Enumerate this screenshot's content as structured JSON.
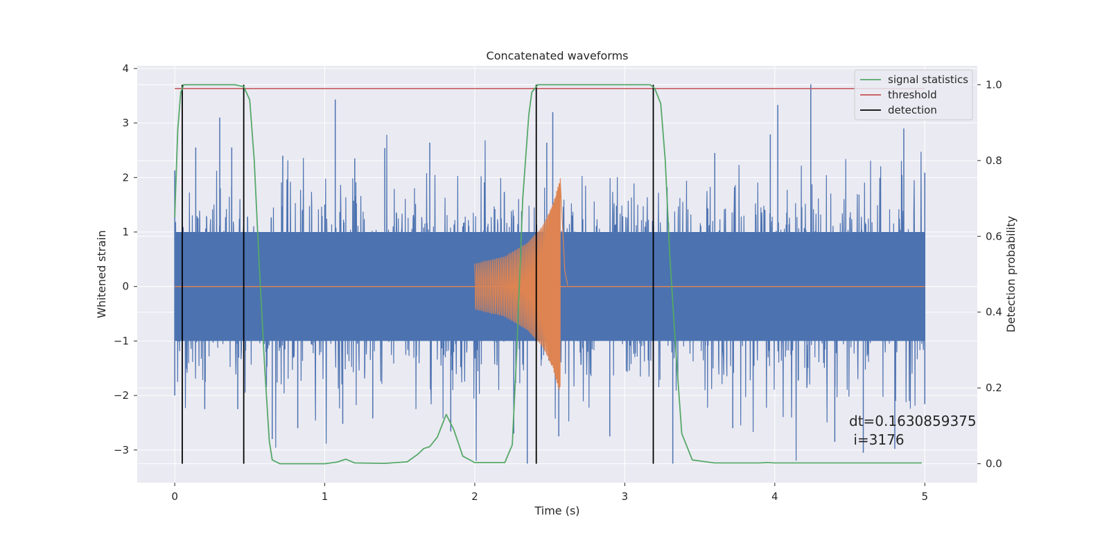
{
  "chart_data": {
    "type": "line",
    "title": "Concatenated waveforms",
    "xlabel": "Time (s)",
    "ylabel": "Whitened strain",
    "y2label": "Detection probability",
    "xlim": [
      -0.25,
      5.35
    ],
    "ylim": [
      -3.6,
      4.05
    ],
    "y2lim": [
      -0.05,
      1.05
    ],
    "xticks": [
      0,
      1,
      2,
      3,
      4,
      5
    ],
    "yticks": [
      -3,
      -2,
      -1,
      0,
      1,
      2,
      3,
      4
    ],
    "y2ticks": [
      0.0,
      0.2,
      0.4,
      0.6,
      0.8,
      1.0
    ],
    "grid": true,
    "legend_position": "top-right",
    "legend": [
      "signal statistics",
      "threshold",
      "detection"
    ],
    "colors": {
      "strain": "#4c72b0",
      "injection": "#dd8452",
      "signal_statistics": "#55a868",
      "threshold": "#c44e52",
      "detection": "#000000",
      "background": "#eaeaf2",
      "grid": "#ffffff"
    },
    "strain_noise": {
      "x_range": [
        0,
        5
      ],
      "band": [
        -1.0,
        1.0
      ],
      "peaks_upper": [
        [
          0.0,
          2.13
        ],
        [
          0.14,
          2.55
        ],
        [
          0.3,
          3.1
        ],
        [
          0.38,
          2.55
        ],
        [
          0.72,
          2.4
        ],
        [
          1.07,
          3.43
        ],
        [
          1.2,
          2.35
        ],
        [
          1.4,
          2.54
        ],
        [
          1.7,
          2.64
        ],
        [
          2.48,
          2.64
        ],
        [
          2.52,
          3.2
        ],
        [
          3.6,
          2.45
        ],
        [
          3.97,
          2.79
        ],
        [
          4.02,
          3.33
        ],
        [
          4.24,
          3.71
        ],
        [
          4.86,
          2.9
        ],
        [
          5.0,
          2.09
        ]
      ],
      "peaks_lower": [
        [
          0.0,
          -2.0
        ],
        [
          0.2,
          -2.25
        ],
        [
          0.42,
          -2.25
        ],
        [
          0.65,
          -2.8
        ],
        [
          0.82,
          -2.6
        ],
        [
          1.12,
          -2.52
        ],
        [
          1.32,
          -2.42
        ],
        [
          1.84,
          -2.66
        ],
        [
          2.26,
          -2.7
        ],
        [
          2.35,
          -3.25
        ],
        [
          2.56,
          -2.75
        ],
        [
          2.9,
          -2.75
        ],
        [
          3.32,
          -3.25
        ],
        [
          3.72,
          -2.6
        ],
        [
          4.4,
          -2.85
        ],
        [
          4.59,
          -3.05
        ],
        [
          4.8,
          -2.98
        ],
        [
          5.0,
          -2.16
        ]
      ]
    },
    "injection": {
      "start": 2.0,
      "merger": 2.57,
      "ringdown_end": 2.62,
      "envelope": [
        [
          2.0,
          0.42
        ],
        [
          2.2,
          0.55
        ],
        [
          2.35,
          0.8
        ],
        [
          2.45,
          1.1
        ],
        [
          2.52,
          1.5
        ],
        [
          2.57,
          2.0
        ],
        [
          2.6,
          0.3
        ],
        [
          2.62,
          0.02
        ]
      ]
    },
    "signal_statistics": {
      "x": [
        0.0,
        0.02,
        0.04,
        0.06,
        0.1,
        0.2,
        0.3,
        0.4,
        0.46,
        0.5,
        0.53,
        0.56,
        0.6,
        0.63,
        0.65,
        0.7,
        1.0,
        1.08,
        1.14,
        1.2,
        1.4,
        1.55,
        1.62,
        1.66,
        1.7,
        1.75,
        1.81,
        1.86,
        1.92,
        2.0,
        2.2,
        2.25,
        2.28,
        2.32,
        2.36,
        2.38,
        2.42,
        2.5,
        3.0,
        3.17,
        3.2,
        3.24,
        3.27,
        3.3,
        3.34,
        3.38,
        3.45,
        3.6,
        3.9,
        3.95,
        4.0,
        4.5,
        4.98
      ],
      "y": [
        0.65,
        0.88,
        0.98,
        1.0,
        1.0,
        1.0,
        1.0,
        1.0,
        0.995,
        0.96,
        0.8,
        0.55,
        0.25,
        0.06,
        0.01,
        0.0,
        0.0,
        0.004,
        0.012,
        0.002,
        0.001,
        0.005,
        0.025,
        0.04,
        0.045,
        0.07,
        0.13,
        0.09,
        0.02,
        0.003,
        0.003,
        0.05,
        0.3,
        0.7,
        0.92,
        0.98,
        1.0,
        1.0,
        1.0,
        1.0,
        0.99,
        0.95,
        0.8,
        0.55,
        0.3,
        0.08,
        0.01,
        0.002,
        0.002,
        0.003,
        0.002,
        0.002,
        0.002
      ]
    },
    "threshold": {
      "value": 0.99,
      "x_range": [
        0,
        5
      ]
    },
    "detections": [
      0.05,
      0.46,
      2.41,
      3.19
    ],
    "annotation": [
      "dt=0.1630859375",
      " i=3176"
    ]
  }
}
